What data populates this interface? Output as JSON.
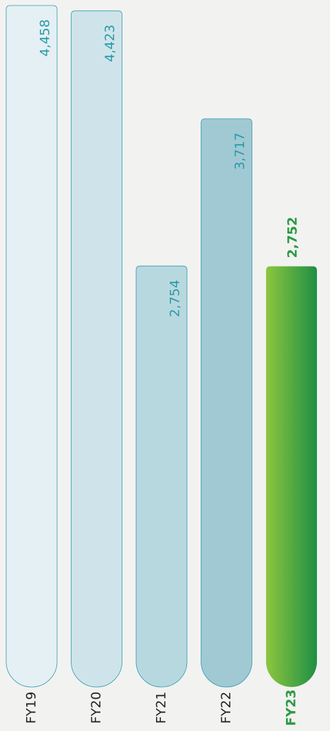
{
  "chart_data": {
    "type": "bar",
    "categories": [
      "FY19",
      "FY20",
      "FY21",
      "FY22",
      "FY23"
    ],
    "values": [
      4458,
      4423,
      2754,
      3717,
      2752
    ],
    "value_labels": [
      "4,458",
      "4,423",
      "2,754",
      "3,717",
      "2,752"
    ],
    "colors": [
      "#e4f0f3",
      "#cfe4ea",
      "#b8d8df",
      "#a0c9d3",
      "#3aa648"
    ],
    "highlight": 4,
    "value_label_color": "#2a9aa8",
    "highlight_color": "#2e9a45"
  }
}
